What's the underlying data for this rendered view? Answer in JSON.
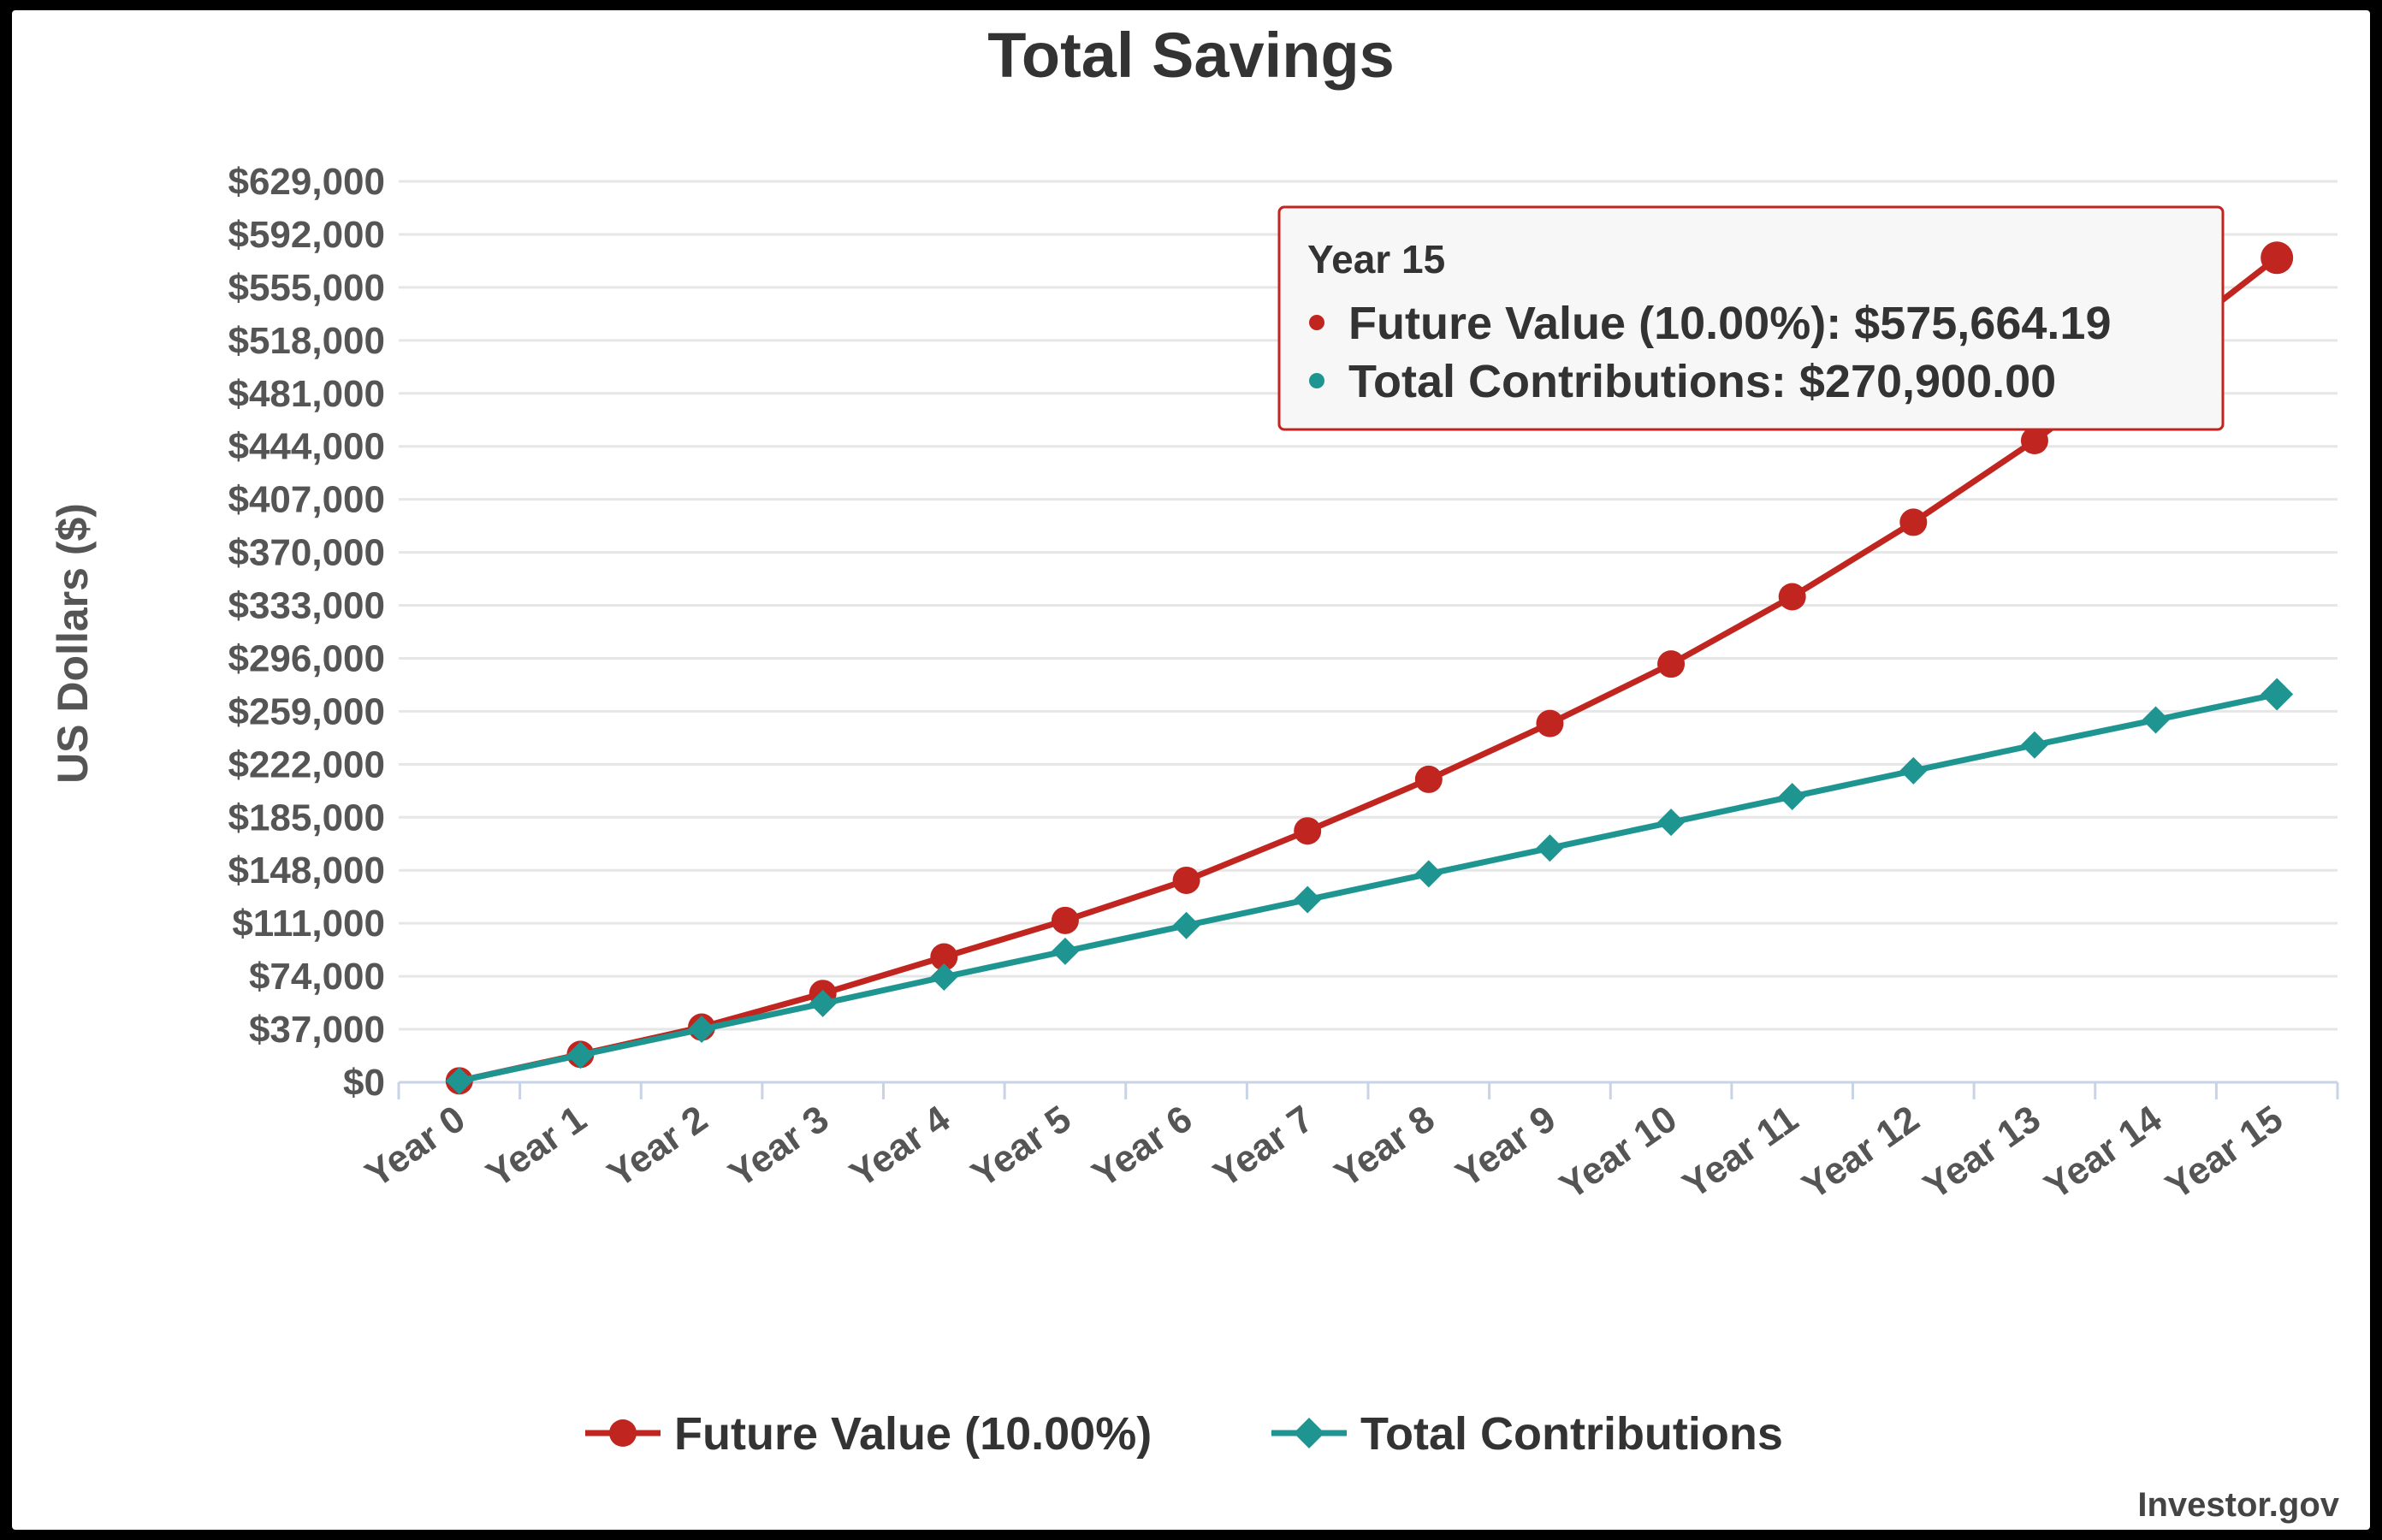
{
  "chart_data": {
    "type": "line",
    "title": "Total Savings",
    "ylabel": "US Dollars ($)",
    "xlabel": "",
    "categories": [
      "Year 0",
      "Year 1",
      "Year 2",
      "Year 3",
      "Year 4",
      "Year 5",
      "Year 6",
      "Year 7",
      "Year 8",
      "Year 9",
      "Year 10",
      "Year 11",
      "Year 12",
      "Year 13",
      "Year 14",
      "Year 15"
    ],
    "ylim": [
      0,
      629000
    ],
    "yticks": [
      "$0",
      "$37,000",
      "$74,000",
      "$111,000",
      "$148,000",
      "$185,000",
      "$222,000",
      "$259,000",
      "$296,000",
      "$333,000",
      "$370,000",
      "$407,000",
      "$444,000",
      "$481,000",
      "$518,000",
      "$555,000",
      "$592,000",
      "$629,000"
    ],
    "ytick_values": [
      0,
      37000,
      74000,
      111000,
      148000,
      185000,
      222000,
      259000,
      296000,
      333000,
      370000,
      407000,
      444000,
      481000,
      518000,
      555000,
      592000,
      629000
    ],
    "grid": true,
    "legend_position": "bottom-center",
    "series": [
      {
        "name": "Future Value (10.00%)",
        "color": "#c0261f",
        "marker": "circle",
        "values": [
          1000,
          19500,
          38500,
          62000,
          87500,
          113000,
          141000,
          175500,
          211500,
          250500,
          292000,
          339000,
          391000,
          448000,
          510000,
          575664.19
        ]
      },
      {
        "name": "Total Contributions",
        "color": "#1f9591",
        "marker": "diamond",
        "values": [
          1000,
          19000,
          37000,
          55000,
          73500,
          91500,
          109500,
          127500,
          145500,
          163500,
          181500,
          199500,
          217500,
          235500,
          253000,
          270900
        ]
      }
    ],
    "tooltip": {
      "header": "Year 15",
      "rows": [
        {
          "label": "Future Value (10.00%): $575,664.19",
          "color": "#c0261f"
        },
        {
          "label": "Total Contributions: $270,900.00",
          "color": "#1f9591"
        }
      ]
    },
    "credit": "Investor.gov"
  }
}
